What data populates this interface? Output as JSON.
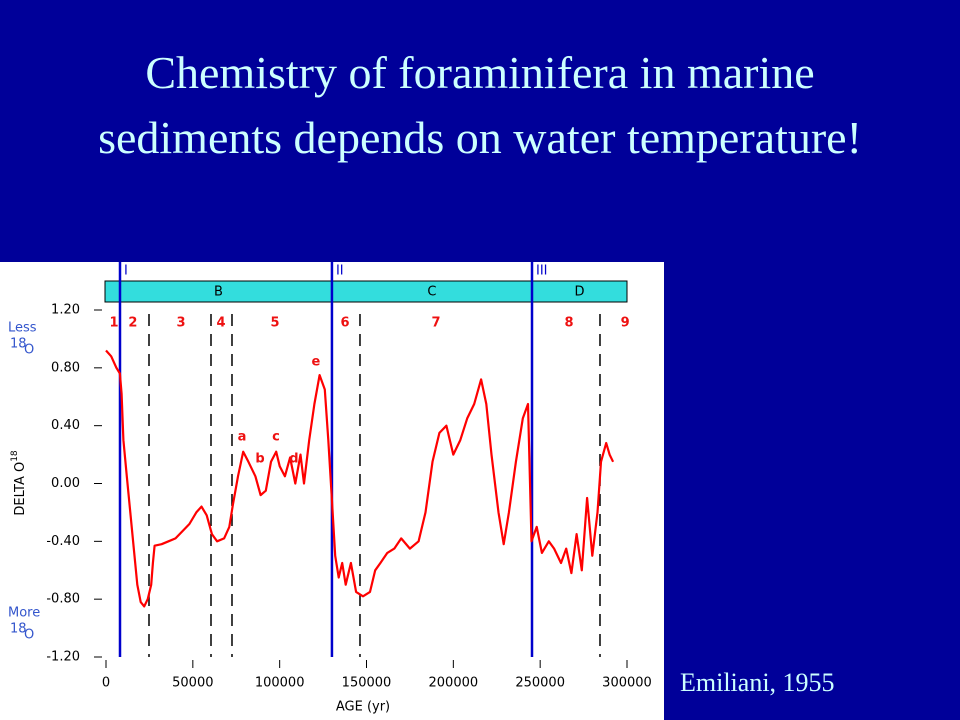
{
  "title": "Chemistry of foraminifera in marine sediments depends on water temperature!",
  "credit": "Emiliani, 1955",
  "chart_data": {
    "type": "line",
    "xlabel": "AGE (yr)",
    "ylabel": {
      "text": "DELTA O",
      "sup": "18"
    },
    "xlim": [
      0,
      300000
    ],
    "xticks": [
      0,
      50000,
      100000,
      150000,
      200000,
      250000,
      300000
    ],
    "ylim": [
      -1.2,
      1.2
    ],
    "yticks": [
      {
        "value": 1.2,
        "label": "1.20"
      },
      {
        "value": 0.8,
        "label": "0.80"
      },
      {
        "value": 0.4,
        "label": "0.40"
      },
      {
        "value": 0,
        "label": "0.00"
      },
      {
        "value": -0.4,
        "label": "-0.40"
      },
      {
        "value": -0.8,
        "label": "-0.80"
      },
      {
        "value": -1.2,
        "label": "-1.20"
      }
    ],
    "y_notes": [
      {
        "text": "Less",
        "sup": "18",
        "base": "O"
      },
      {
        "text": "More",
        "sup": "18",
        "base": "O"
      }
    ],
    "boundaries": {
      "color": "#0000cc",
      "x": [
        8060,
        130100,
        245300
      ],
      "labels": [
        "I",
        "II",
        "III"
      ]
    },
    "stages": {
      "color": "#33dddd",
      "names": [
        "B",
        "C",
        "D"
      ]
    },
    "dashed": [
      24760,
      60460,
      72550,
      146250,
      284450
    ],
    "stage_numbers": {
      "labels": [
        "1",
        "2",
        "3",
        "4",
        "5",
        "6",
        "7",
        "8",
        "9"
      ],
      "x": [
        4600,
        15500,
        43200,
        66200,
        97300,
        137600,
        190000,
        266600,
        298900
      ]
    },
    "letters": {
      "labels": [
        "a",
        "b",
        "c",
        "d",
        "e"
      ],
      "x": [
        78300,
        88700,
        97900,
        108200,
        120900
      ],
      "y": [
        0.32,
        0.17,
        0.32,
        0.17,
        0.84
      ]
    },
    "series": [
      {
        "color": "#ff0000",
        "x": [
          0,
          3000,
          6000,
          8000,
          9000,
          10000,
          12000,
          14000,
          16000,
          18000,
          20000,
          22000,
          24000,
          26000,
          27000,
          28000,
          32000,
          36000,
          40000,
          44000,
          48000,
          52000,
          55000,
          58000,
          61000,
          64000,
          68000,
          71000,
          73000,
          76000,
          79000,
          82000,
          86000,
          89000,
          92000,
          95000,
          98000,
          100000,
          103000,
          106000,
          109000,
          112000,
          114000,
          117000,
          120000,
          123000,
          126000,
          128000,
          130000,
          132000,
          134000,
          136000,
          138000,
          141000,
          144000,
          148000,
          152000,
          155000,
          158000,
          162000,
          166000,
          170000,
          175000,
          180000,
          184000,
          188000,
          192000,
          196000,
          200000,
          204000,
          208000,
          212000,
          216000,
          219000,
          222000,
          226000,
          229000,
          232000,
          236000,
          240000,
          243000,
          245000,
          248000,
          251000,
          255000,
          258000,
          262000,
          265000,
          268000,
          271000,
          274000,
          277000,
          280000,
          283000,
          285000,
          288000,
          290000,
          292000
        ],
        "values": [
          0.92,
          0.88,
          0.8,
          0.76,
          0.62,
          0.3,
          0.05,
          -0.2,
          -0.45,
          -0.7,
          -0.82,
          -0.85,
          -0.8,
          -0.7,
          -0.55,
          -0.43,
          -0.42,
          -0.4,
          -0.38,
          -0.33,
          -0.28,
          -0.2,
          -0.16,
          -0.22,
          -0.35,
          -0.4,
          -0.38,
          -0.3,
          -0.15,
          0.05,
          0.22,
          0.15,
          0.05,
          -0.08,
          -0.05,
          0.15,
          0.22,
          0.12,
          0.05,
          0.18,
          0,
          0.2,
          0,
          0.3,
          0.55,
          0.75,
          0.65,
          0.3,
          -0.1,
          -0.5,
          -0.65,
          -0.55,
          -0.7,
          -0.55,
          -0.75,
          -0.78,
          -0.75,
          -0.6,
          -0.55,
          -0.48,
          -0.45,
          -0.38,
          -0.45,
          -0.4,
          -0.2,
          0.15,
          0.35,
          0.4,
          0.2,
          0.3,
          0.45,
          0.55,
          0.72,
          0.55,
          0.2,
          -0.2,
          -0.42,
          -0.2,
          0.15,
          0.45,
          0.55,
          -0.4,
          -0.3,
          -0.48,
          -0.4,
          -0.45,
          -0.55,
          -0.45,
          -0.62,
          -0.35,
          -0.6,
          -0.1,
          -0.5,
          -0.2,
          0.15,
          0.28,
          0.2,
          0.15
        ]
      }
    ]
  }
}
